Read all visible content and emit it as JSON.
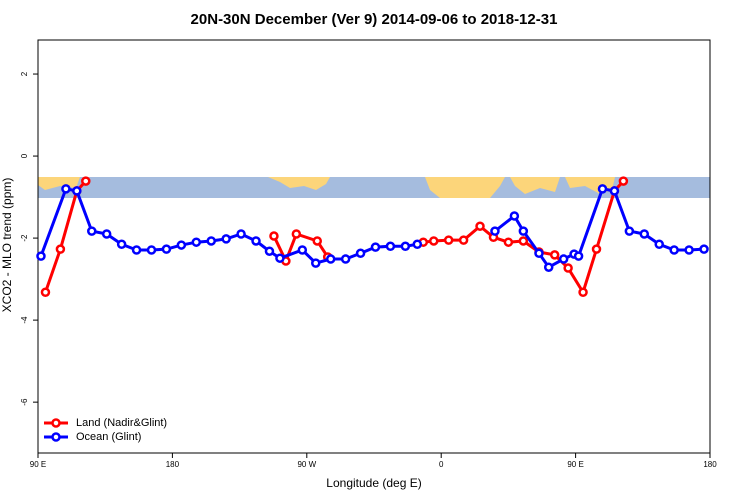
{
  "chart_data": {
    "type": "line",
    "title": "20N-30N December (Ver 9)   2014-09-06 to 2018-12-31",
    "x_label": "Longitude (deg E)",
    "y_label": "XCO2 - MLO trend (ppm)",
    "xlim": [
      90,
      540
    ],
    "xticks": [
      {
        "value": 90,
        "label": "90 E"
      },
      {
        "value": 180,
        "label": "180"
      },
      {
        "value": 270,
        "label": "90 W"
      },
      {
        "value": 360,
        "label": "0"
      },
      {
        "value": 450,
        "label": "90 E"
      },
      {
        "value": 540,
        "label": "180"
      }
    ],
    "ylim": [
      -7.24,
      2.83
    ],
    "yticks": [
      2,
      0,
      -2,
      -4,
      -6
    ],
    "legend": "bottom-left",
    "series": [
      {
        "name": "Land (Nadir&Glint)",
        "color": "#ff0000",
        "x": [
          95,
          105,
          116,
          122,
          null,
          248,
          256,
          263,
          277,
          284,
          null,
          348,
          355,
          365,
          375,
          386,
          395,
          405,
          415,
          425.5,
          436,
          445,
          455,
          464,
          476,
          482
        ],
        "values": [
          -3.32,
          -2.27,
          -0.85,
          -0.61,
          null,
          -1.95,
          -2.56,
          -1.9,
          -2.07,
          -2.46,
          null,
          -2.1,
          -2.07,
          -2.05,
          -2.05,
          -1.71,
          -1.98,
          -2.1,
          -2.07,
          -2.34,
          -2.41,
          -2.73,
          -3.32,
          -2.27,
          -0.85,
          -0.61
        ]
      },
      {
        "name": "Ocean (Glint)",
        "color": "#0000ff",
        "x": [
          92,
          108.7,
          116,
          126,
          136,
          146,
          156,
          166,
          176,
          186,
          196,
          206,
          216,
          226,
          236,
          245,
          252,
          267,
          276,
          286,
          296,
          306,
          316,
          326,
          336,
          344,
          null,
          396,
          409,
          415,
          425.5,
          432,
          442,
          449,
          452,
          468,
          476,
          486,
          496,
          506,
          516,
          526,
          536
        ],
        "values": [
          -2.44,
          -0.8,
          -0.85,
          -1.83,
          -1.9,
          -2.15,
          -2.29,
          -2.29,
          -2.27,
          -2.17,
          -2.1,
          -2.07,
          -2.02,
          -1.9,
          -2.07,
          -2.32,
          -2.49,
          -2.29,
          -2.61,
          -2.51,
          -2.51,
          -2.37,
          -2.22,
          -2.2,
          -2.2,
          -2.15,
          null,
          -1.83,
          -1.46,
          -1.83,
          -2.37,
          -2.71,
          -2.51,
          -2.39,
          -2.44,
          -0.8,
          -0.85,
          -1.83,
          -1.9,
          -2.15,
          -2.29,
          -2.29,
          -2.27
        ]
      }
    ]
  }
}
